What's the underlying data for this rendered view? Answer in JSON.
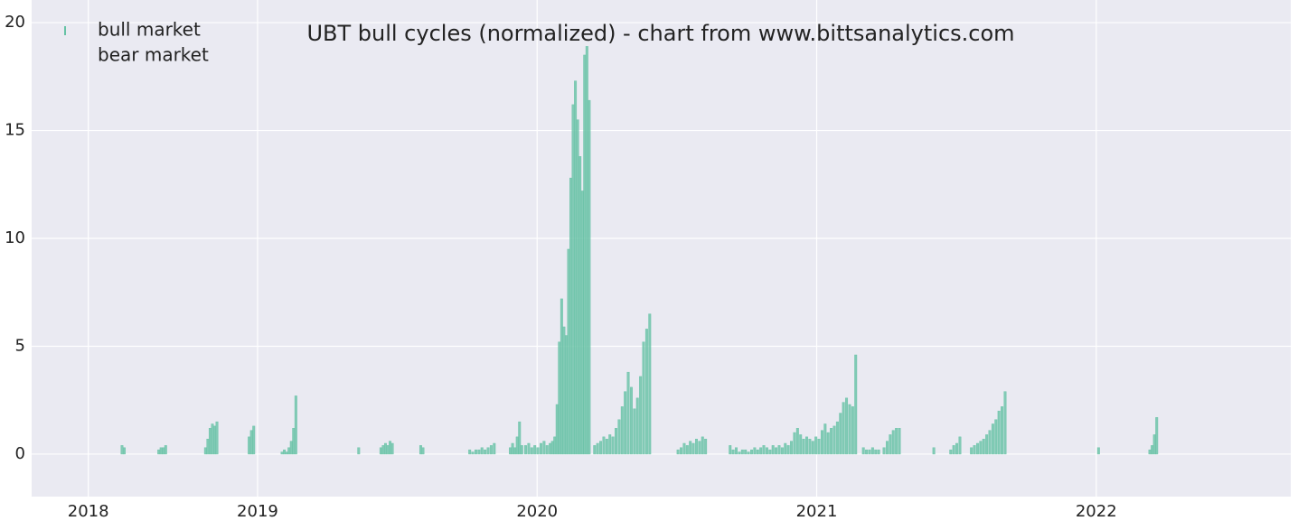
{
  "chart_data": {
    "type": "bar",
    "title": "UBT bull cycles (normalized)  - chart from www.bittsanalytics.com",
    "xlim": [
      -74,
      1570
    ],
    "xticks": [
      {
        "value": 0,
        "label": "2018"
      },
      {
        "value": 221,
        "label": "2019"
      },
      {
        "value": 586,
        "label": "2020"
      },
      {
        "value": 951,
        "label": "2021"
      },
      {
        "value": 1316,
        "label": "2022"
      }
    ],
    "ylim": [
      -1.97,
      21.05
    ],
    "yticks": [
      0,
      5,
      10,
      15,
      20
    ],
    "grid": true,
    "legend": "upper left",
    "series": [
      {
        "name": "bull market",
        "color": "#66c2a5",
        "x": [
          44,
          47,
          92,
          95,
          98,
          101,
          153,
          156,
          159,
          162,
          165,
          168,
          210,
          213,
          216,
          253,
          256,
          259,
          262,
          265,
          268,
          271,
          353,
          382,
          385,
          388,
          391,
          394,
          397,
          434,
          437,
          498,
          502,
          506,
          510,
          514,
          518,
          522,
          526,
          530,
          551,
          554,
          557,
          560,
          563,
          566,
          571,
          575,
          579,
          583,
          587,
          591,
          595,
          599,
          603,
          606,
          609,
          612,
          615,
          618,
          621,
          624,
          627,
          630,
          633,
          636,
          639,
          642,
          645,
          648,
          651,
          654,
          661,
          665,
          669,
          673,
          677,
          681,
          685,
          689,
          693,
          697,
          701,
          705,
          709,
          713,
          717,
          721,
          725,
          729,
          733,
          770,
          774,
          778,
          782,
          786,
          790,
          794,
          798,
          802,
          806,
          838,
          842,
          846,
          850,
          854,
          858,
          862,
          866,
          870,
          874,
          878,
          882,
          886,
          890,
          894,
          898,
          902,
          906,
          910,
          914,
          918,
          922,
          926,
          930,
          934,
          938,
          942,
          946,
          950,
          954,
          958,
          962,
          966,
          970,
          974,
          978,
          982,
          986,
          990,
          994,
          998,
          1002,
          1012,
          1016,
          1020,
          1024,
          1028,
          1032,
          1039,
          1043,
          1047,
          1051,
          1055,
          1059,
          1104,
          1126,
          1130,
          1134,
          1138,
          1153,
          1157,
          1161,
          1165,
          1169,
          1173,
          1177,
          1181,
          1185,
          1189,
          1193,
          1197,
          1319,
          1386,
          1389,
          1392,
          1395
        ],
        "values": [
          0.4,
          0.3,
          0.2,
          0.3,
          0.3,
          0.4,
          0.3,
          0.7,
          1.2,
          1.4,
          1.3,
          1.5,
          0.8,
          1.1,
          1.3,
          0.1,
          0.2,
          0.1,
          0.3,
          0.6,
          1.2,
          2.7,
          0.3,
          0.3,
          0.4,
          0.5,
          0.4,
          0.6,
          0.5,
          0.4,
          0.3,
          0.2,
          0.1,
          0.2,
          0.2,
          0.3,
          0.2,
          0.3,
          0.4,
          0.5,
          0.3,
          0.5,
          0.3,
          0.8,
          1.5,
          0.4,
          0.4,
          0.5,
          0.3,
          0.4,
          0.3,
          0.5,
          0.6,
          0.4,
          0.5,
          0.6,
          0.8,
          2.3,
          5.2,
          7.2,
          5.9,
          5.5,
          9.5,
          12.8,
          16.2,
          17.3,
          15.5,
          13.8,
          12.2,
          18.5,
          18.9,
          16.4,
          0.4,
          0.5,
          0.6,
          0.8,
          0.7,
          0.9,
          0.8,
          1.2,
          1.6,
          2.2,
          2.9,
          3.8,
          3.1,
          2.1,
          2.6,
          3.6,
          5.2,
          5.8,
          6.5,
          0.2,
          0.3,
          0.5,
          0.4,
          0.6,
          0.5,
          0.7,
          0.6,
          0.8,
          0.7,
          0.4,
          0.2,
          0.3,
          0.1,
          0.2,
          0.2,
          0.1,
          0.2,
          0.3,
          0.2,
          0.3,
          0.4,
          0.3,
          0.2,
          0.4,
          0.3,
          0.4,
          0.3,
          0.5,
          0.4,
          0.6,
          1.0,
          1.2,
          0.9,
          0.7,
          0.8,
          0.7,
          0.6,
          0.8,
          0.7,
          1.1,
          1.4,
          1.0,
          1.2,
          1.3,
          1.5,
          1.9,
          2.4,
          2.6,
          2.3,
          2.2,
          4.6,
          0.3,
          0.2,
          0.2,
          0.3,
          0.2,
          0.2,
          0.3,
          0.6,
          0.9,
          1.1,
          1.2,
          1.2,
          0.3,
          0.2,
          0.4,
          0.5,
          0.8,
          0.3,
          0.4,
          0.5,
          0.6,
          0.7,
          0.9,
          1.1,
          1.4,
          1.6,
          2.0,
          2.2,
          2.9,
          0.3,
          0.2,
          0.4,
          0.9,
          1.7
        ]
      },
      {
        "name": "bear market",
        "x": [],
        "values": []
      }
    ]
  }
}
